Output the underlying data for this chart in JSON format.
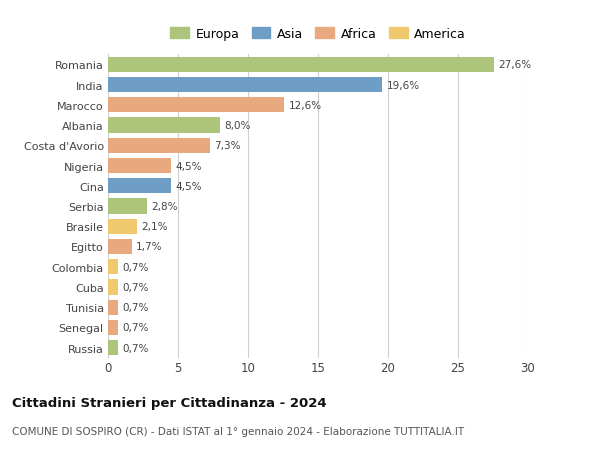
{
  "countries": [
    "Romania",
    "India",
    "Marocco",
    "Albania",
    "Costa d'Avorio",
    "Nigeria",
    "Cina",
    "Serbia",
    "Brasile",
    "Egitto",
    "Colombia",
    "Cuba",
    "Tunisia",
    "Senegal",
    "Russia"
  ],
  "values": [
    27.6,
    19.6,
    12.6,
    8.0,
    7.3,
    4.5,
    4.5,
    2.8,
    2.1,
    1.7,
    0.7,
    0.7,
    0.7,
    0.7,
    0.7
  ],
  "labels": [
    "27,6%",
    "19,6%",
    "12,6%",
    "8,0%",
    "7,3%",
    "4,5%",
    "4,5%",
    "2,8%",
    "2,1%",
    "1,7%",
    "0,7%",
    "0,7%",
    "0,7%",
    "0,7%",
    "0,7%"
  ],
  "continents": [
    "Europa",
    "Asia",
    "Africa",
    "Europa",
    "Africa",
    "Africa",
    "Asia",
    "Europa",
    "America",
    "Africa",
    "America",
    "America",
    "Africa",
    "Africa",
    "Europa"
  ],
  "colors": {
    "Europa": "#acc57a",
    "Asia": "#6e9ec5",
    "Africa": "#e8a97e",
    "America": "#f0c96e"
  },
  "legend_order": [
    "Europa",
    "Asia",
    "Africa",
    "America"
  ],
  "xlim": [
    0,
    30
  ],
  "xticks": [
    0,
    5,
    10,
    15,
    20,
    25,
    30
  ],
  "title": "Cittadini Stranieri per Cittadinanza - 2024",
  "subtitle": "COMUNE DI SOSPIRO (CR) - Dati ISTAT al 1° gennaio 2024 - Elaborazione TUTTITALIA.IT",
  "background_color": "#ffffff",
  "grid_color": "#d0d0d0",
  "bar_height": 0.75
}
